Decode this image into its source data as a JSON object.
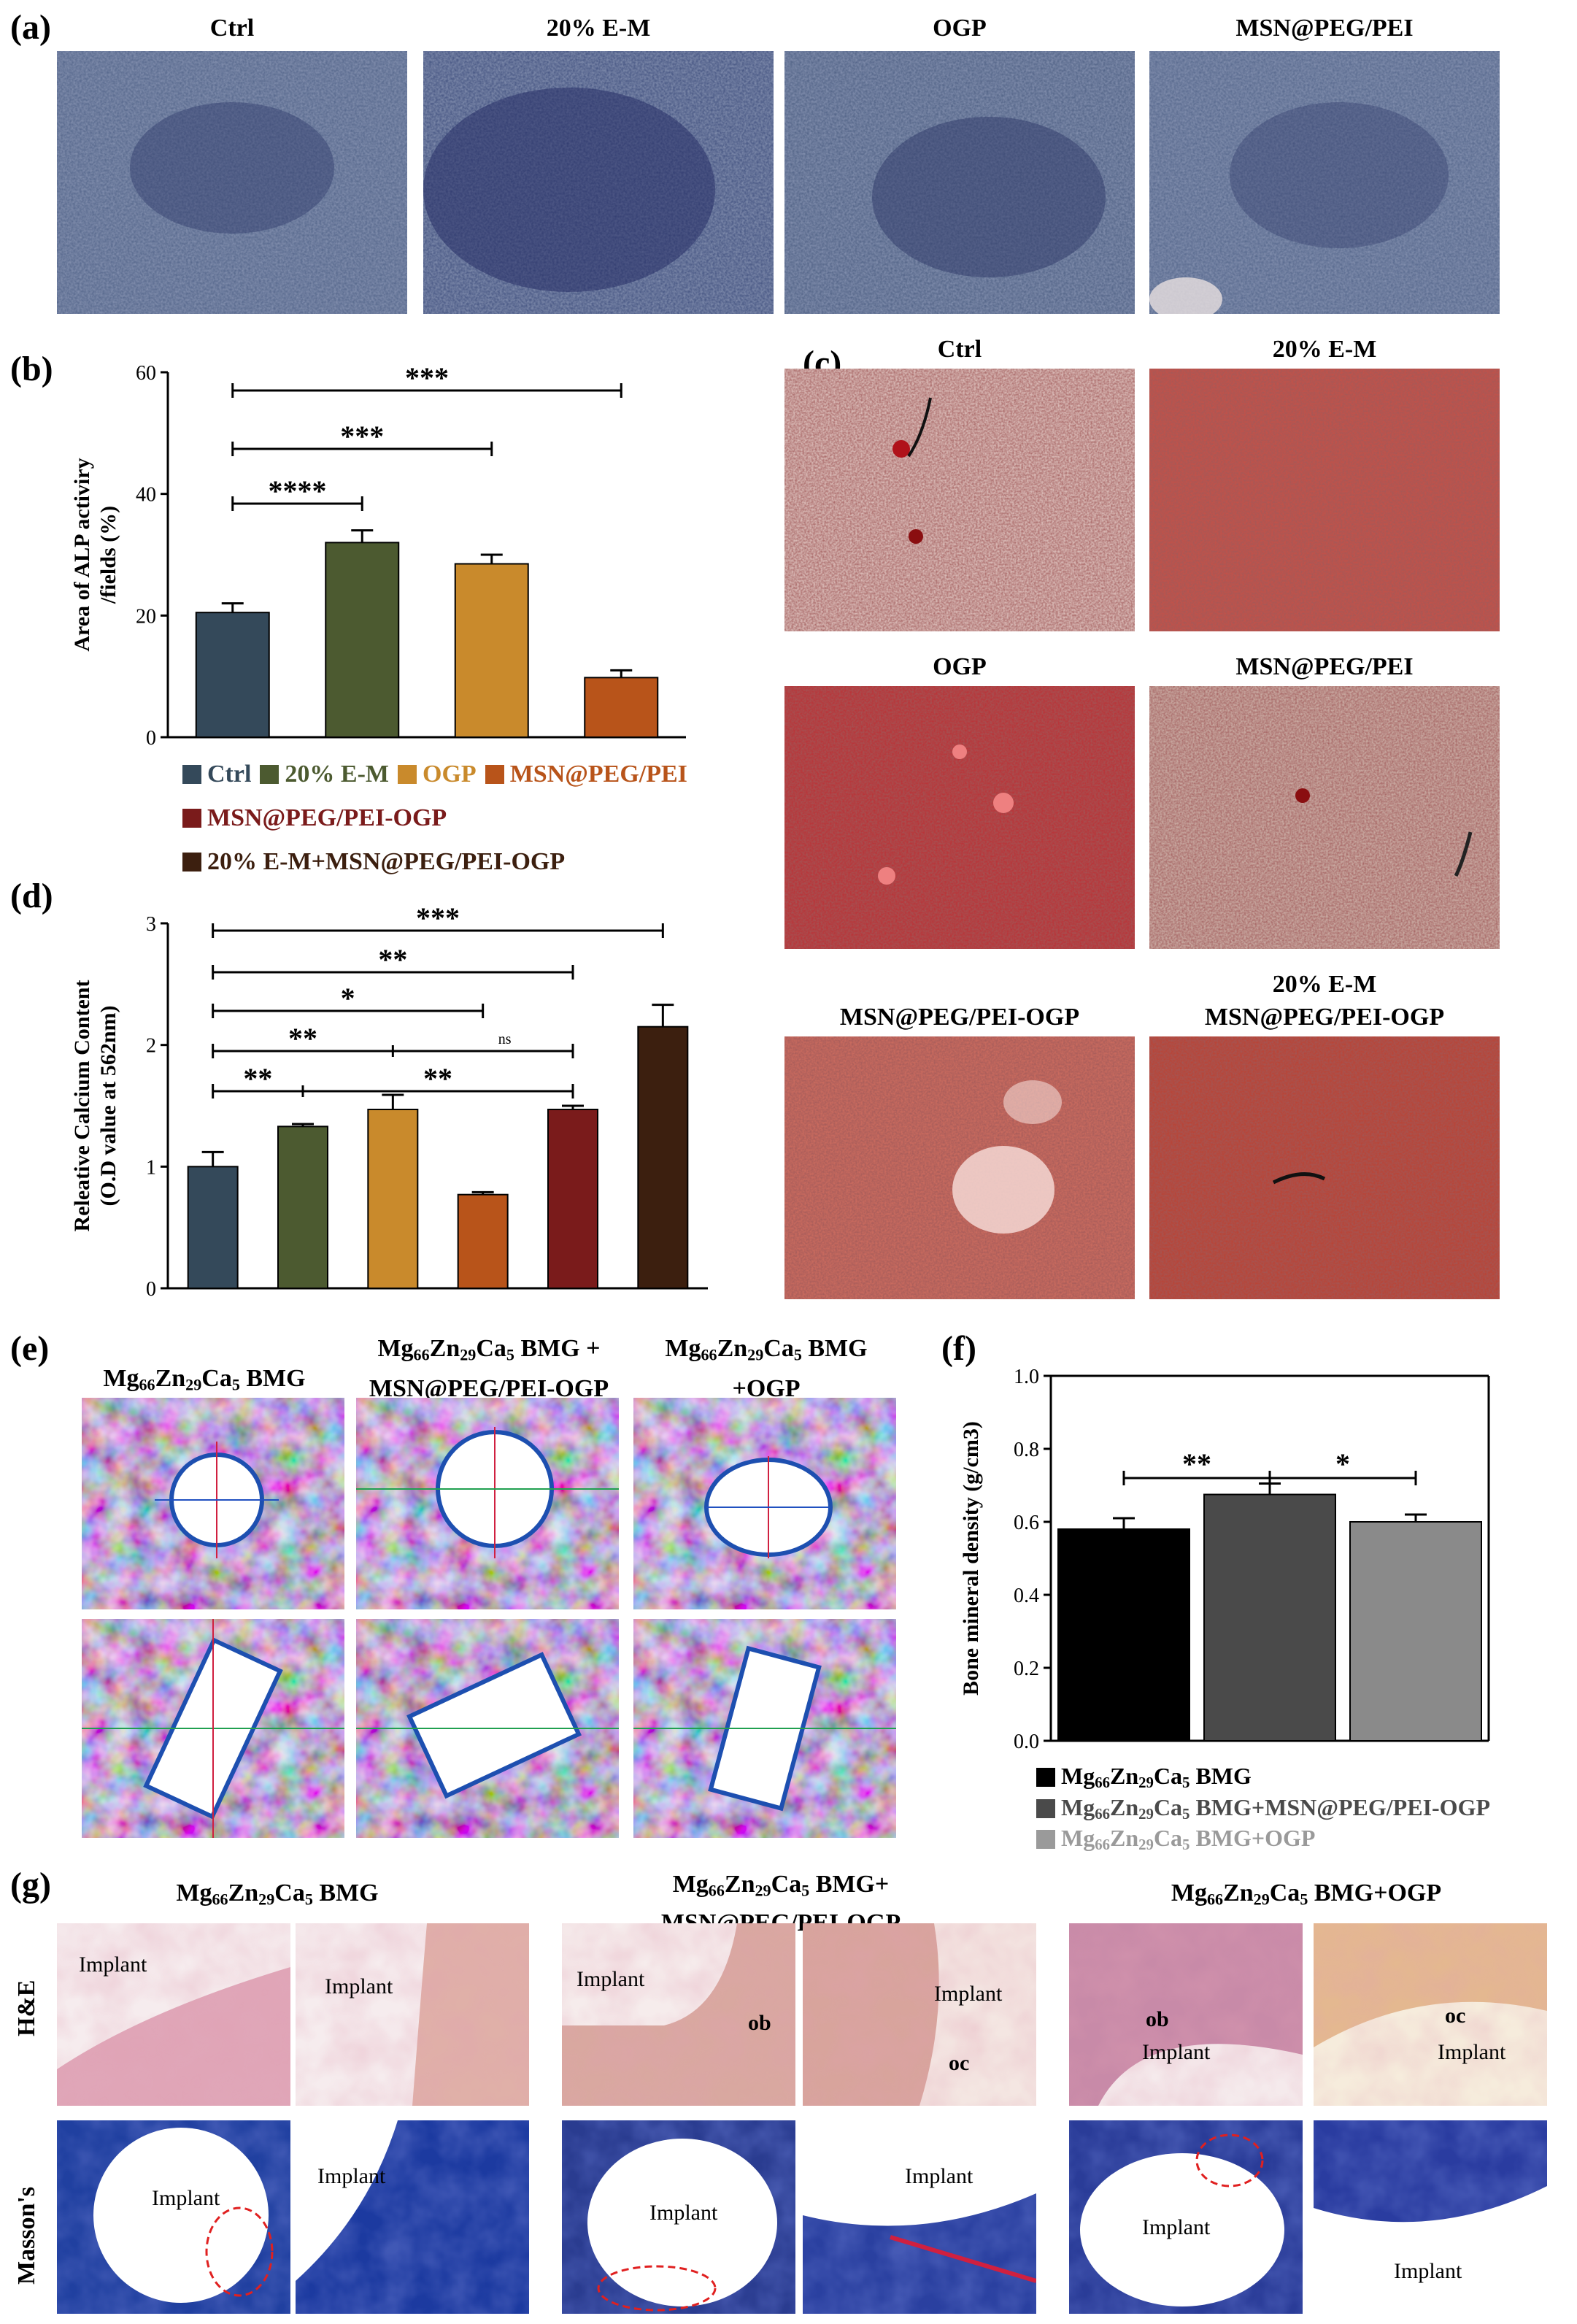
{
  "panel_a": {
    "label": "(a)",
    "titles": [
      "Ctrl",
      "20% E-M",
      "OGP",
      "MSN@PEG/PEI"
    ]
  },
  "panel_b": {
    "label": "(b)",
    "legend": [
      {
        "name": "Ctrl",
        "color": "#34495a"
      },
      {
        "name": "20% E-M",
        "color": "#4c5a30"
      },
      {
        "name": "OGP",
        "color": "#c98a2c"
      },
      {
        "name": "MSN@PEG/PEI",
        "color": "#b8541a"
      },
      {
        "name": "MSN@PEG/PEI-OGP",
        "color": "#7a1b1b"
      },
      {
        "name": "20% E-M+MSN@PEG/PEI-OGP",
        "color": "#3c1f0f"
      }
    ]
  },
  "panel_c": {
    "label": "(c)",
    "titles": [
      "Ctrl",
      "20% E-M",
      "OGP",
      "MSN@PEG/PEI",
      "MSN@PEG/PEI-OGP",
      "20% E-M",
      "MSN@PEG/PEI-OGP"
    ]
  },
  "panel_d": {
    "label": "(d)"
  },
  "panel_e": {
    "label": "(e)",
    "titles": [
      {
        "prefix": "Mg",
        "s1": "66",
        "m1": "Zn",
        "s2": "29",
        "m2": "Ca",
        "s3": "5",
        "suffix": " BMG",
        "line2": ""
      },
      {
        "prefix": "Mg",
        "s1": "66",
        "m1": "Zn",
        "s2": "29",
        "m2": "Ca",
        "s3": "5",
        "suffix": " BMG +",
        "line2": "MSN@PEG/PEI-OGP"
      },
      {
        "prefix": "Mg",
        "s1": "66",
        "m1": "Zn",
        "s2": "29",
        "m2": "Ca",
        "s3": "5",
        "suffix": " BMG",
        "line2": "+OGP"
      }
    ]
  },
  "panel_f": {
    "label": "(f)",
    "legend": [
      {
        "prefix": "Mg",
        "s1": "66",
        "m1": "Zn",
        "s2": "29",
        "m2": "Ca",
        "s3": "5",
        "suffix": " BMG",
        "color": "#000000"
      },
      {
        "prefix": "Mg",
        "s1": "66",
        "m1": "Zn",
        "s2": "29",
        "m2": "Ca",
        "s3": "5",
        "suffix": " BMG+MSN@PEG/PEI-OGP",
        "color": "#4a4a4a"
      },
      {
        "prefix": "Mg",
        "s1": "66",
        "m1": "Zn",
        "s2": "29",
        "m2": "Ca",
        "s3": "5",
        "suffix": " BMG+OGP",
        "color": "#9a9a9a"
      }
    ]
  },
  "panel_g": {
    "label": "(g)",
    "titles": [
      {
        "prefix": "Mg",
        "s1": "66",
        "m1": "Zn",
        "s2": "29",
        "m2": "Ca",
        "s3": "5",
        "suffix": " BMG",
        "line2": ""
      },
      {
        "prefix": "Mg",
        "s1": "66",
        "m1": "Zn",
        "s2": "29",
        "m2": "Ca",
        "s3": "5",
        "suffix": " BMG+",
        "line2": "MSN@PEG/PEI-OGP"
      },
      {
        "prefix": "Mg",
        "s1": "66",
        "m1": "Zn",
        "s2": "29",
        "m2": "Ca",
        "s3": "5",
        "suffix": " BMG+OGP",
        "line2": ""
      }
    ],
    "row_labels": [
      "H&E",
      "Masson's"
    ],
    "implant_label": "Implant",
    "ob_label": "ob",
    "oc_label": "oc"
  },
  "chart_data": [
    {
      "id": "b",
      "type": "bar",
      "ylabel": "Area of ALP activiry /fields (%)",
      "ylabel_lines": [
        "Area of ALP activiry",
        "/fields (%)"
      ],
      "ylim": [
        0,
        60
      ],
      "yticks": [
        0,
        20,
        40,
        60
      ],
      "categories": [
        "Ctrl",
        "20% E-M",
        "OGP",
        "MSN@PEG/PEI"
      ],
      "values": [
        20.5,
        32,
        28.5,
        9.8
      ],
      "errors": [
        1.5,
        2,
        1.5,
        1.2
      ],
      "colors": [
        "#34495a",
        "#4c5a30",
        "#c98a2c",
        "#b8541a"
      ],
      "significance": [
        {
          "from": 0,
          "to": 1,
          "label": "****"
        },
        {
          "from": 0,
          "to": 2,
          "label": "***"
        },
        {
          "from": 0,
          "to": 3,
          "label": "***"
        }
      ]
    },
    {
      "id": "d",
      "type": "bar",
      "ylabel": "Releative Calcium Content (O.D value at 562nm)",
      "ylabel_lines": [
        "Releative Calcium Content",
        "(O.D value at 562nm)"
      ],
      "ylim": [
        0,
        3
      ],
      "yticks": [
        0,
        1,
        2,
        3
      ],
      "categories": [
        "Ctrl",
        "20% E-M",
        "OGP",
        "MSN@PEG/PEI",
        "MSN@PEG/PEI-OGP",
        "20% E-M+MSN@PEG/PEI-OGP"
      ],
      "values": [
        1.0,
        1.33,
        1.47,
        0.77,
        1.47,
        2.15
      ],
      "errors": [
        0.12,
        0.02,
        0.12,
        0.02,
        0.03,
        0.18
      ],
      "colors": [
        "#34495a",
        "#4c5a30",
        "#c98a2c",
        "#b8541a",
        "#7a1b1b",
        "#3c1f0f"
      ],
      "significance": [
        {
          "from": 0,
          "to": 5,
          "label": "***"
        },
        {
          "from": 0,
          "to": 4,
          "label": "**"
        },
        {
          "from": 0,
          "to": 3,
          "label": "*"
        },
        {
          "from": 0,
          "to": 4,
          "label": "**",
          "mid_label": "ns"
        },
        {
          "from": 0,
          "to": 4,
          "label": "**",
          "mid_label": "**"
        }
      ]
    },
    {
      "id": "f",
      "type": "bar",
      "ylabel": "Bone mineral density (g/cm3)",
      "ylim": [
        0,
        1.0
      ],
      "yticks": [
        0.0,
        0.2,
        0.4,
        0.6,
        0.8,
        1.0
      ],
      "ytick_labels": [
        "0.0",
        "0.2",
        "0.4",
        "0.6",
        "0.8",
        "1.0"
      ],
      "categories": [
        "Mg66Zn29Ca5 BMG",
        "Mg66Zn29Ca5 BMG+MSN@PEG/PEI-OGP",
        "Mg66Zn29Ca5 BMG+OGP"
      ],
      "values": [
        0.58,
        0.675,
        0.6
      ],
      "errors": [
        0.03,
        0.03,
        0.02
      ],
      "colors": [
        "#000000",
        "#4a4a4a",
        "#8a8a8a"
      ],
      "significance": [
        {
          "from": 0,
          "to": 1,
          "label": "**"
        },
        {
          "from": 1,
          "to": 2,
          "label": "*"
        }
      ]
    }
  ]
}
